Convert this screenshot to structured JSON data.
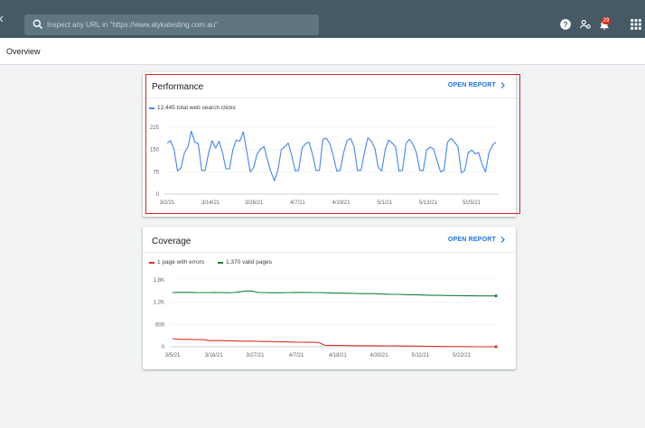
{
  "search": {
    "placeholder": "Inspect any URL in \"https://www.alykatesting.com.au\""
  },
  "topbar": {
    "notification_count": "29",
    "icons": [
      "search-icon",
      "help-icon",
      "manage-users-icon",
      "notifications-icon",
      "apps-grid-icon"
    ]
  },
  "page": {
    "title": "Overview"
  },
  "colors": {
    "topbar": "#455a64",
    "link": "#1a73e8",
    "performance_line": "#4285f4",
    "error_line": "#d93025",
    "valid_line": "#188038",
    "highlight": "#d7262b"
  },
  "performance": {
    "title": "Performance",
    "open_report": "OPEN REPORT",
    "legend": "12,445 total web search clicks",
    "chart_data": {
      "type": "line",
      "y_ticks": [
        "225",
        "150",
        "75",
        "0"
      ],
      "ylim": [
        0,
        225
      ],
      "x_ticks": [
        "3/2/21",
        "3/14/21",
        "3/26/21",
        "4/7/21",
        "4/19/21",
        "5/1/21",
        "5/13/21",
        "5/25/21"
      ],
      "series": [
        {
          "name": "12,445 total web search clicks",
          "values": [
            172,
            180,
            150,
            78,
            88,
            140,
            158,
            212,
            175,
            170,
            80,
            80,
            140,
            180,
            155,
            178,
            140,
            85,
            85,
            150,
            182,
            178,
            210,
            145,
            75,
            90,
            135,
            152,
            160,
            115,
            75,
            45,
            80,
            150,
            160,
            172,
            130,
            78,
            80,
            155,
            170,
            175,
            135,
            80,
            80,
            185,
            188,
            170,
            130,
            78,
            80,
            140,
            180,
            188,
            160,
            80,
            80,
            140,
            190,
            178,
            155,
            90,
            78,
            150,
            182,
            172,
            160,
            78,
            80,
            170,
            185,
            168,
            140,
            80,
            80,
            150,
            158,
            152,
            112,
            75,
            80,
            175,
            188,
            175,
            160,
            72,
            80,
            140,
            148,
            136,
            140,
            100,
            75,
            140,
            165,
            175
          ]
        }
      ]
    }
  },
  "coverage": {
    "title": "Coverage",
    "open_report": "OPEN REPORT",
    "legend_errors": "1 page with errors",
    "legend_valid": "1,370 valid pages",
    "chart_data": {
      "type": "line",
      "y_ticks": [
        "1.8K",
        "1.2K",
        "600",
        "0"
      ],
      "ylim": [
        0,
        1800
      ],
      "x_ticks": [
        "3/5/21",
        "3/16/21",
        "3/27/21",
        "4/7/21",
        "4/18/21",
        "4/30/21",
        "5/11/21",
        "5/22/21"
      ],
      "series": [
        {
          "name": "1,370 valid pages",
          "values": [
            1460,
            1465,
            1465,
            1465,
            1460,
            1460,
            1460,
            1462,
            1460,
            1455,
            1460,
            1480,
            1500,
            1500,
            1460,
            1460,
            1455,
            1455,
            1455,
            1460,
            1462,
            1462,
            1462,
            1460,
            1460,
            1455,
            1450,
            1445,
            1442,
            1440,
            1435,
            1430,
            1430,
            1430,
            1420,
            1415,
            1410,
            1410,
            1405,
            1400,
            1400,
            1395,
            1390,
            1385,
            1385,
            1380,
            1378,
            1375,
            1372,
            1372,
            1370,
            1370,
            1370,
            1370
          ]
        },
        {
          "name": "1 page with errors",
          "values": [
            220,
            200,
            200,
            198,
            195,
            190,
            165,
            165,
            165,
            160,
            160,
            150,
            150,
            150,
            145,
            140,
            140,
            135,
            132,
            128,
            125,
            122,
            120,
            118,
            110,
            40,
            35,
            35,
            34,
            32,
            30,
            30,
            28,
            27,
            26,
            25,
            24,
            22,
            20,
            18,
            16,
            14,
            12,
            10,
            8,
            6,
            5,
            4,
            3,
            2,
            1,
            1,
            1,
            1
          ]
        }
      ]
    }
  }
}
